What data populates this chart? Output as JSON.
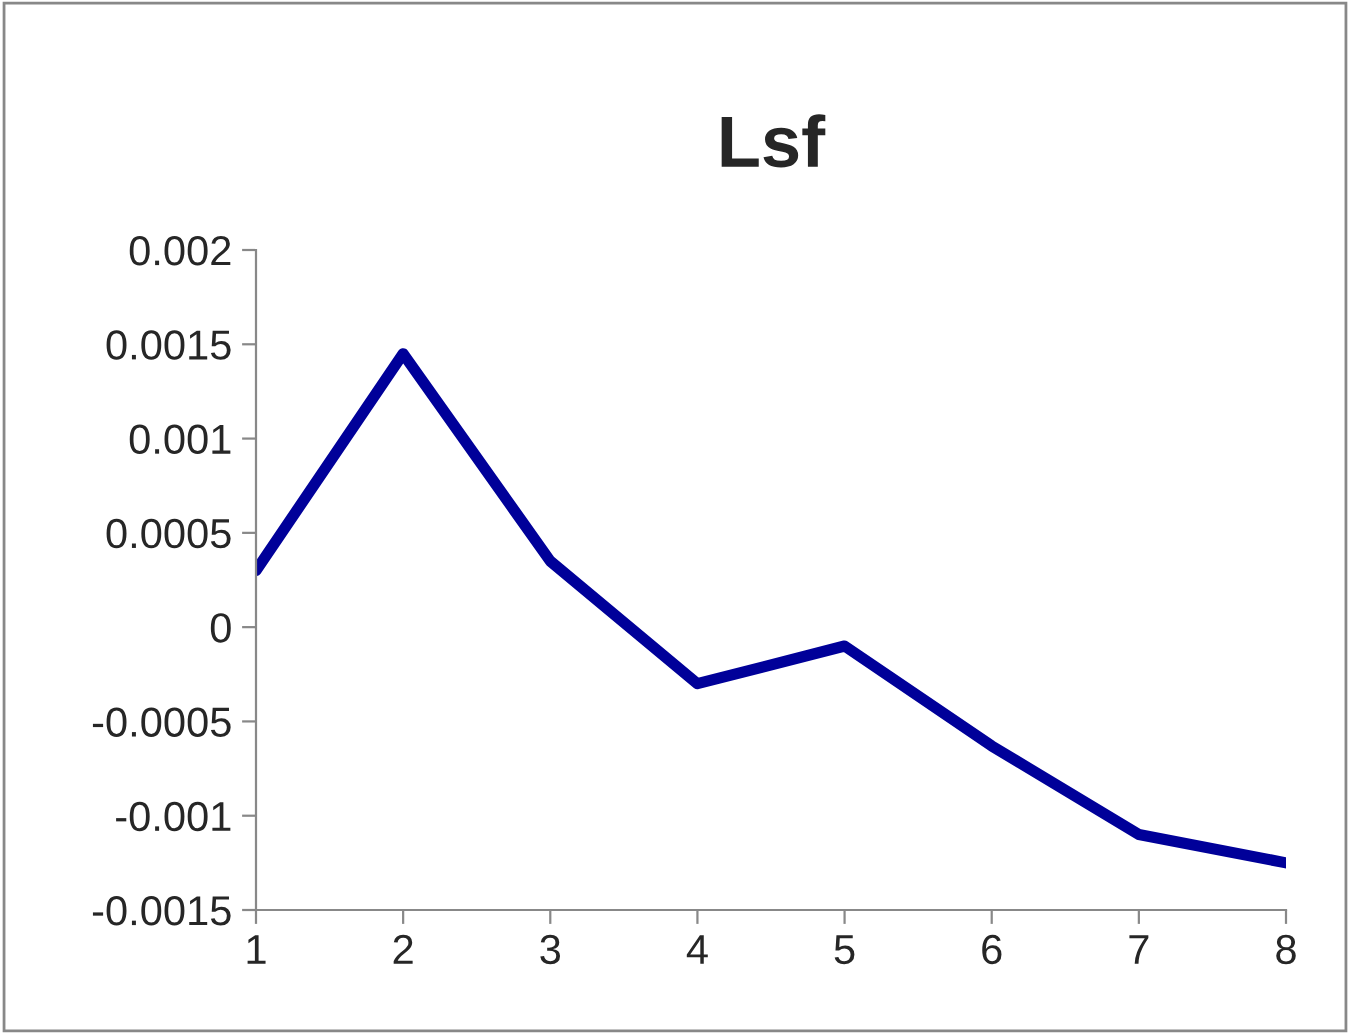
{
  "chart_data": {
    "type": "line",
    "title": "Lsf",
    "x": [
      1,
      2,
      3,
      4,
      5,
      6,
      7,
      8
    ],
    "series": [
      {
        "color": "#000099",
        "values": [
          0.0003,
          0.00145,
          0.00035,
          -0.0003,
          -0.0001,
          -0.00063,
          -0.0011,
          -0.00125
        ]
      }
    ],
    "xlim": [
      1,
      8
    ],
    "xticks": [
      1,
      2,
      3,
      4,
      5,
      6,
      7,
      8
    ],
    "ylim": [
      -0.0015,
      0.002
    ],
    "yticks": [
      {
        "value": -0.0015,
        "label": "-0.0015"
      },
      {
        "value": -0.001,
        "label": "-0.001"
      },
      {
        "value": -0.0005,
        "label": "-0.0005"
      },
      0,
      {
        "value": 0.0005,
        "label": "0.0005"
      },
      {
        "value": 0.001,
        "label": "0.001"
      },
      {
        "value": 0.0015,
        "label": "0.0015"
      },
      {
        "value": 0.002,
        "label": "0.002"
      }
    ],
    "grid": false,
    "marker": "none",
    "line_style": "solid"
  }
}
